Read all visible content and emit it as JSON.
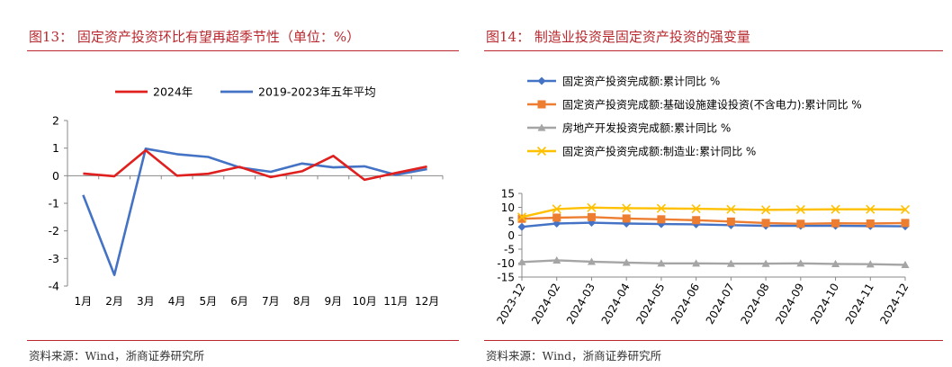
{
  "left": {
    "title": "图13： 固定资产投资环比有望再超季节性（单位：%）",
    "source": "资料来源：Wind，浙商证券研究所"
  },
  "right": {
    "title": "图14： 制造业投资是固定资产投资的强变量",
    "source": "资料来源：Wind，浙商证券研究所"
  },
  "chart_data": [
    {
      "type": "line",
      "title": "",
      "xlabel": "",
      "ylabel": "",
      "categories": [
        "1月",
        "2月",
        "3月",
        "4月",
        "5月",
        "6月",
        "7月",
        "8月",
        "9月",
        "10月",
        "11月",
        "12月"
      ],
      "yticks": [
        2,
        1,
        0,
        -1,
        -2,
        -3,
        -4
      ],
      "ylim": [
        -4,
        2
      ],
      "legend": "top",
      "grid": false,
      "series": [
        {
          "name": "2024年",
          "color": "#e0201f",
          "values": [
            0.08,
            -0.02,
            0.92,
            0.0,
            0.07,
            0.32,
            -0.05,
            0.16,
            0.72,
            -0.15,
            0.1,
            0.33
          ]
        },
        {
          "name": "2019-2023年五年平均",
          "color": "#4472c4",
          "values": [
            -0.7,
            -3.6,
            0.98,
            0.78,
            0.68,
            0.3,
            0.14,
            0.44,
            0.3,
            0.34,
            0.03,
            0.24
          ]
        }
      ]
    },
    {
      "type": "line",
      "title": "",
      "xlabel": "",
      "ylabel": "",
      "categories": [
        "2023-12",
        "2024-02",
        "2024-03",
        "2024-04",
        "2024-05",
        "2024-06",
        "2024-07",
        "2024-08",
        "2024-09",
        "2024-10",
        "2024-11",
        "2024-12"
      ],
      "yticks": [
        15,
        10,
        5,
        0,
        -5,
        -10,
        -15
      ],
      "ylim": [
        -15,
        15
      ],
      "legend": "top",
      "grid": false,
      "series": [
        {
          "name": "固定资产投资完成额:累计同比 %",
          "color": "#4472c4",
          "marker": "diamond",
          "values": [
            3.0,
            4.2,
            4.5,
            4.2,
            4.0,
            3.9,
            3.6,
            3.4,
            3.4,
            3.4,
            3.3,
            3.2
          ]
        },
        {
          "name": "固定资产投资完成额:基础设施建设投资(不含电力):累计同比 %",
          "color": "#ed7d31",
          "marker": "square",
          "values": [
            5.9,
            6.3,
            6.5,
            6.0,
            5.7,
            5.4,
            4.9,
            4.4,
            4.1,
            4.3,
            4.2,
            4.4
          ]
        },
        {
          "name": "房地产开发投资完成额:累计同比 %",
          "color": "#a5a5a5",
          "marker": "triangle",
          "values": [
            -9.6,
            -9.0,
            -9.5,
            -9.8,
            -10.1,
            -10.1,
            -10.2,
            -10.2,
            -10.1,
            -10.3,
            -10.4,
            -10.6
          ]
        },
        {
          "name": "固定资产投资完成额:制造业:累计同比 %",
          "color": "#ffc000",
          "marker": "x",
          "values": [
            6.5,
            9.4,
            9.9,
            9.7,
            9.6,
            9.5,
            9.3,
            9.1,
            9.2,
            9.3,
            9.3,
            9.2
          ]
        }
      ]
    }
  ]
}
